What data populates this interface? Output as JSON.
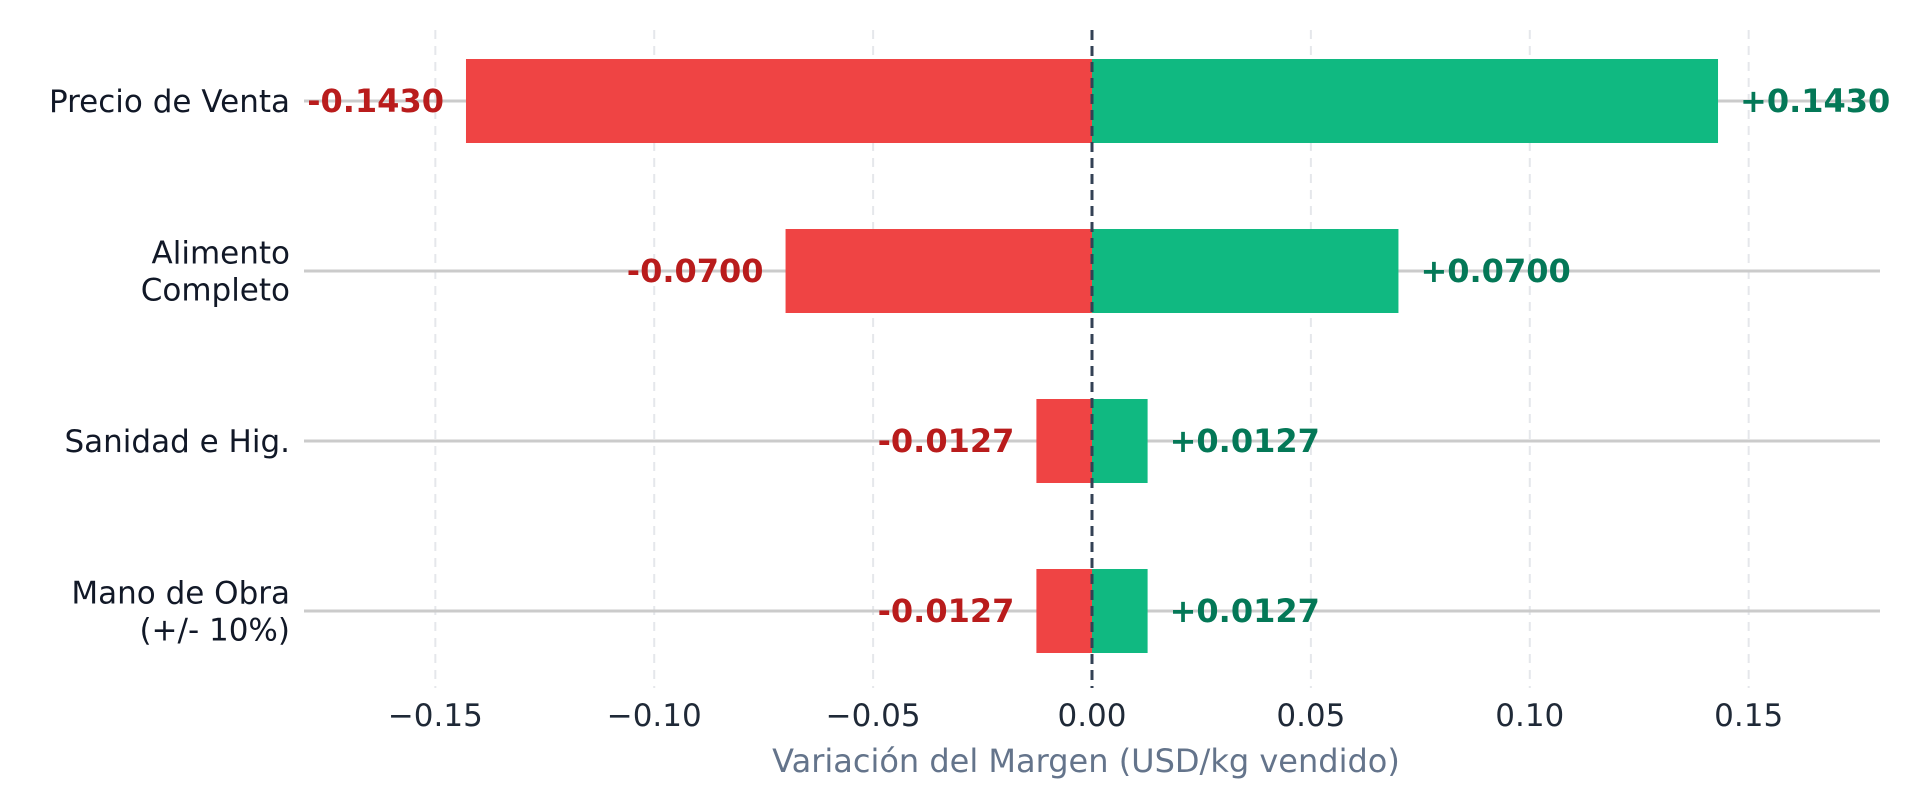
{
  "chart_data": {
    "type": "bar",
    "orientation": "horizontal",
    "subtype": "tornado",
    "categories": [
      [
        "Precio de Venta"
      ],
      [
        "Alimento",
        "Completo"
      ],
      [
        "Sanidad e Hig."
      ],
      [
        "Mano de Obra",
        "(+/- 10%)"
      ]
    ],
    "series": [
      {
        "values": [
          -0.143,
          -0.07,
          -0.0127,
          -0.0127
        ],
        "labels": [
          "-0.1430",
          "-0.0700",
          "-0.0127",
          "-0.0127"
        ],
        "color": "#ef4444",
        "label_color": "#b91c1c"
      },
      {
        "values": [
          0.143,
          0.07,
          0.0127,
          0.0127
        ],
        "labels": [
          "+0.1430",
          "+0.0700",
          "+0.0127",
          "+0.0127"
        ],
        "color": "#10b981",
        "label_color": "#047857"
      }
    ],
    "xlabel": "Variación del Margen (USD/kg vendido)",
    "xlim": [
      -0.18,
      0.18
    ],
    "xticks": [
      -0.15,
      -0.1,
      -0.05,
      0.0,
      0.05,
      0.1,
      0.15
    ],
    "xtick_labels": [
      "−0.15",
      "−0.10",
      "−0.05",
      "0.00",
      "0.05",
      "0.10",
      "0.15"
    ],
    "grid": true,
    "reference_line": 0,
    "legend": "none"
  }
}
